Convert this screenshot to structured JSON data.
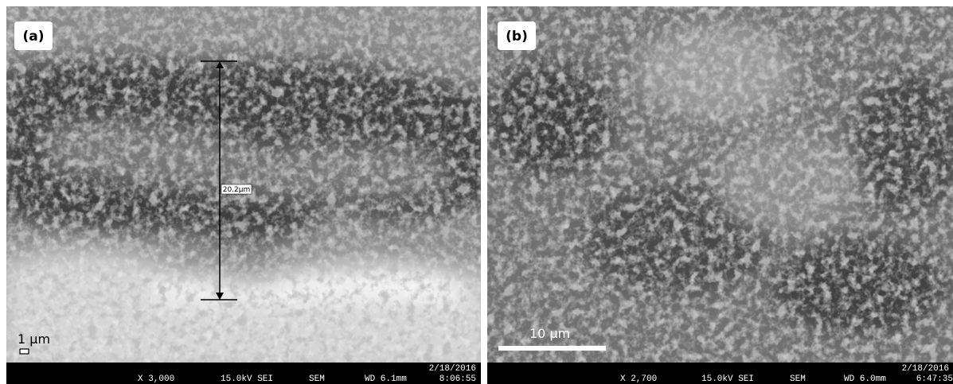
{
  "panels": [
    {
      "label": "(a)",
      "measurement": "20.2µm",
      "scale_bar": "1 µm",
      "info": {
        "date": "2/18/2016",
        "magnification": "X 3,000",
        "voltage": "15.0kV SEI",
        "mode": "SEM",
        "working_distance": "WD 6.1mm",
        "time": "8:06:55"
      }
    },
    {
      "label": "(b)",
      "scale_bar": "10 µm",
      "info": {
        "date": "2/18/2016",
        "magnification": "X 2,700",
        "voltage": "15.0kV SEI",
        "mode": "SEM",
        "working_distance": "WD 6.0mm",
        "time": "6:47:35"
      }
    }
  ]
}
